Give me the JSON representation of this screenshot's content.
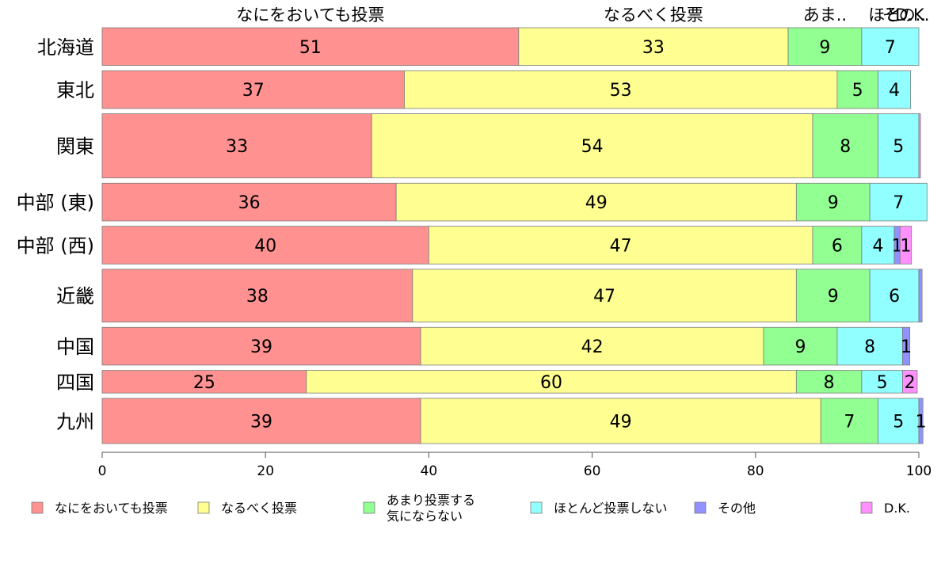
{
  "chart_data": {
    "type": "bar",
    "orientation": "horizontal",
    "stacked": true,
    "categories": [
      "北海道",
      "東北",
      "関東",
      "中部 (東)",
      "中部 (西)",
      "近畿",
      "中国",
      "四国",
      "九州"
    ],
    "series": [
      {
        "name": "なにをおいても投票",
        "color": "#ff9191",
        "values": [
          51,
          37,
          33,
          36,
          40,
          38,
          39,
          25,
          39
        ],
        "labels": [
          "51",
          "37",
          "33",
          "36",
          "40",
          "38",
          "39",
          "25",
          "39"
        ]
      },
      {
        "name": "なるべく投票",
        "color": "#ffff91",
        "values": [
          33,
          53,
          54,
          49,
          47,
          47,
          42,
          60,
          49
        ],
        "labels": [
          "33",
          "53",
          "54",
          "49",
          "47",
          "47",
          "42",
          "60",
          "49"
        ]
      },
      {
        "name": "あまり投票する気にならない",
        "color": "#91ff91",
        "values": [
          9,
          5,
          8,
          9,
          6,
          9,
          9,
          8,
          7
        ],
        "labels": [
          "9",
          "5",
          "8",
          "9",
          "6",
          "9",
          "9",
          "8",
          "7"
        ]
      },
      {
        "name": "ほとんど投票しない",
        "color": "#91ffff",
        "values": [
          7,
          4,
          5,
          7,
          4,
          6,
          8,
          5,
          5
        ],
        "labels": [
          "7",
          "4",
          "5",
          "7",
          "4",
          "6",
          "8",
          "5",
          "5"
        ]
      },
      {
        "name": "その他",
        "color": "#9191ff",
        "values": [
          0,
          0,
          0,
          0,
          0.7,
          0.4,
          0.9,
          0,
          0.5
        ],
        "labels": [
          "",
          "",
          "",
          "",
          "1",
          "",
          "1",
          "",
          "1"
        ]
      },
      {
        "name": "D.K.",
        "color": "#ff91ff",
        "values": [
          0,
          0,
          0.2,
          0,
          1.4,
          0,
          0,
          1.8,
          0
        ],
        "labels": [
          "",
          "",
          "",
          "",
          "1",
          "",
          "",
          "2",
          ""
        ]
      }
    ],
    "bar_weights": [
      1,
      1,
      1.7,
      1,
      1,
      1.4,
      1,
      0.6,
      1.2
    ],
    "top_labels": [
      "なにをおいても投票",
      "なるべく投票",
      "あま..",
      "ほと..",
      "その..",
      "D.K."
    ],
    "xlim": [
      0,
      100
    ],
    "xticks": [
      0,
      20,
      40,
      60,
      80,
      100
    ],
    "legend_position": "bottom",
    "legend_labels": [
      [
        "なにをおいても投票"
      ],
      [
        "なるべく投票"
      ],
      [
        "あまり投票する",
        "気にならない"
      ],
      [
        "ほとんど投票しない"
      ],
      [
        "その他"
      ],
      [
        "D.K."
      ]
    ]
  }
}
